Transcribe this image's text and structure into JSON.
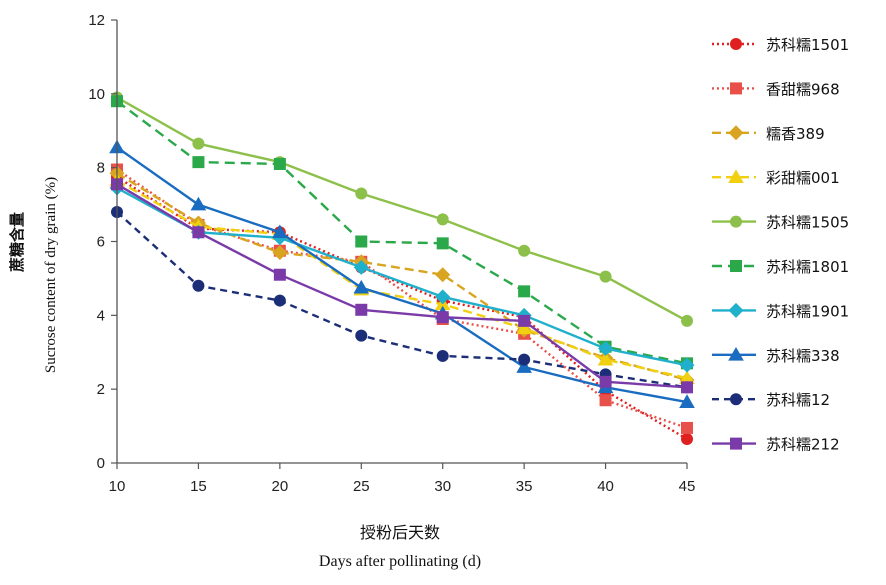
{
  "chart_data": {
    "type": "line",
    "x": [
      10,
      15,
      20,
      25,
      30,
      35,
      40,
      45
    ],
    "xlabel_cn": "授粉后天数",
    "xlabel_en": "Days after pollinating (d)",
    "ylabel_cn": "蔗糖含量",
    "ylabel_en": "Sucrose content of dry grain (%)",
    "xlim": [
      10,
      45
    ],
    "ylim": [
      0,
      12
    ],
    "xticks": [
      10,
      15,
      20,
      25,
      30,
      35,
      40,
      45
    ],
    "yticks": [
      0,
      2,
      4,
      6,
      8,
      10,
      12
    ],
    "grid": false,
    "legend_position": "right",
    "series": [
      {
        "name": "苏科糯1501",
        "color": "#e02020",
        "marker": "circle",
        "dash": "2,3",
        "values": [
          7.75,
          6.35,
          6.25,
          5.3,
          4.4,
          3.95,
          1.95,
          0.65
        ]
      },
      {
        "name": "香甜糯968",
        "color": "#e8504a",
        "marker": "square",
        "dash": "2,3",
        "values": [
          7.95,
          6.45,
          5.75,
          5.45,
          3.9,
          3.5,
          1.7,
          0.95
        ]
      },
      {
        "name": "糯香389",
        "color": "#d9a520",
        "marker": "diamond",
        "dash": "9,5",
        "values": [
          7.85,
          6.5,
          5.7,
          5.45,
          5.1,
          3.6,
          2.85,
          2.25
        ]
      },
      {
        "name": "彩甜糯001",
        "color": "#f0d010",
        "marker": "triangle",
        "dash": "9,5",
        "values": [
          7.65,
          6.4,
          6.2,
          4.7,
          4.3,
          3.65,
          2.8,
          2.3
        ]
      },
      {
        "name": "苏科糯1505",
        "color": "#8cc04a",
        "marker": "circle",
        "dash": "",
        "values": [
          9.9,
          8.65,
          8.15,
          7.3,
          6.6,
          5.75,
          5.05,
          3.85
        ]
      },
      {
        "name": "苏科糯1801",
        "color": "#2aa84a",
        "marker": "square",
        "dash": "10,6",
        "values": [
          9.8,
          8.15,
          8.1,
          6.0,
          5.95,
          4.65,
          3.15,
          2.7
        ]
      },
      {
        "name": "苏科糯1901",
        "color": "#20b0cc",
        "marker": "diamond",
        "dash": "",
        "values": [
          7.45,
          6.25,
          6.1,
          5.3,
          4.5,
          4.0,
          3.1,
          2.65
        ]
      },
      {
        "name": "苏科糯338",
        "color": "#1a6cc0",
        "marker": "triangle",
        "dash": "",
        "values": [
          8.55,
          7.0,
          6.25,
          4.75,
          4.05,
          2.6,
          2.05,
          1.65
        ]
      },
      {
        "name": "苏科糯12",
        "color": "#1c2e78",
        "marker": "circle",
        "dash": "7,5",
        "values": [
          6.8,
          4.8,
          4.4,
          3.45,
          2.9,
          2.8,
          2.4,
          2.05
        ]
      },
      {
        "name": "苏科糯212",
        "color": "#7a3aa8",
        "marker": "square",
        "dash": "",
        "values": [
          7.55,
          6.25,
          5.1,
          4.15,
          3.95,
          3.85,
          2.2,
          2.05
        ]
      }
    ]
  }
}
